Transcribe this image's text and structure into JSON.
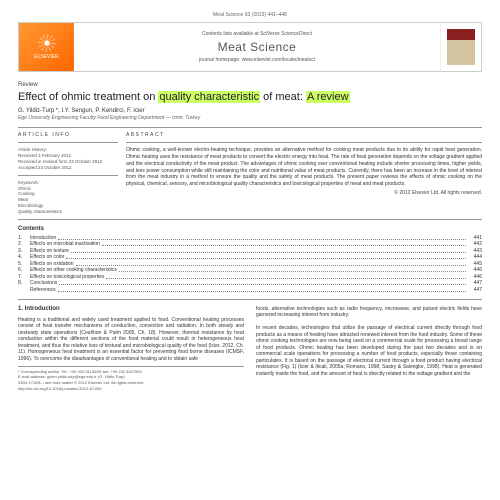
{
  "top_meta": "Meat Science 93 (2013) 441–448",
  "header": {
    "publisher": "ELSEVIER",
    "contents_line": "Contents lists available at SciVerse ScienceDirect",
    "journal": "Meat Science",
    "homepage": "journal homepage: www.elsevier.com/locate/meatsci"
  },
  "review_label": "Review",
  "title_pre": "Effect of ohmic treatment on ",
  "title_hl1": "quality characteristic",
  "title_mid": " of meat: ",
  "title_hl2": "A review",
  "authors": "G. Yildiz-Turp *, I.Y. Sengun, P. Kendirci, F. Icier",
  "affiliation": "Ege University Engineering Faculty Food Engineering Department — Izmir, Turkey",
  "article_info": {
    "head": "ARTICLE INFO",
    "history_label": "Article History:",
    "history": "Received 3 February 2012\nReceived in revised form 23 October 2012\nAccepted 24 October 2012",
    "keywords_label": "Keywords:",
    "keywords": "Ohmic\nCooking\nMeat\nMicrobiology\nQuality characteristics"
  },
  "abstract": {
    "head": "ABSTRACT",
    "body": "Ohmic cooking, a well-known electro-heating technique, provides an alternative method for cooking meat products due to its ability for rapid heat generation. Ohmic heating uses the resistance of meat products to convert the electric energy into heat. The rate of heat generation depends on the voltage gradient applied and the electrical conductivity of the meat product. The advantages of ohmic cooking over conventional heating include shorter processing times, higher yields, and less power consumption while still maintaining the color and nutritional value of meat products. Currently, there has been an increase in the level of interest from the meat industry in a method to ensure the quality and the safety of meat products. The present paper reviews the effects of ohmic cooking on the physical, chemical, sensory, and microbiological quality characteristics and toxicological properties of meat and meat products.",
    "copyright": "© 2012 Elsevier Ltd. All rights reserved."
  },
  "toc": {
    "head": "Contents",
    "items": [
      {
        "n": "1.",
        "t": "Introduction",
        "p": "441"
      },
      {
        "n": "2.",
        "t": "Effects on microbial inactivation",
        "p": "442"
      },
      {
        "n": "3.",
        "t": "Effects on texture",
        "p": "443"
      },
      {
        "n": "4.",
        "t": "Effects on color",
        "p": "444"
      },
      {
        "n": "5.",
        "t": "Effects on oxidation",
        "p": "445"
      },
      {
        "n": "6.",
        "t": "Effects on other cooking characteristics",
        "p": "446"
      },
      {
        "n": "7.",
        "t": "Effects on toxicological properties",
        "p": "446"
      },
      {
        "n": "8.",
        "t": "Conclusions",
        "p": "447"
      },
      {
        "n": "",
        "t": "References",
        "p": "447"
      }
    ]
  },
  "section1": {
    "head": "1. Introduction",
    "col1": "Heating is a traditional and widely used treatment applied to food. Conventional heating processes consist of heat transfer mechanisms of conduction, convection and radiation. In both steady and unsteady state operations (Coulthon & Palm 2005, Ch. 18). However, thermal resistance by heat conduction within the different sections of the food material could result in heterogeneous heat treatment, and thus the relative loss of textural and microbiological quality of the food (Icier, 2012, Ch. 11). Homogeneous heat treatment is an essential factor for preventing food borne diseases (ICMSF, 1996). To overcome the disadvantages of conventional heating and to obtain safe",
    "col2": "foods, alternative technologies such as radio frequency, microwave, and pulsed electric fields have garnered increasing interest from industry.\n\nIn recent decades, technologies that utilize the passage of electrical current directly through food products as a means of heating have attracted renewed interest from the food industry. Some of these ohmic cooking technologies are now being used on a commercial scale for processing a broad range of food products. Ohmic heating has been developed during the past two decades and is on commercial scale operations for processing a number of food products, especially those containing particulates. It is based on the passage of electrical current through a food product having electrical resistance (Fig. 1) (Icier & Ilicali, 2005a; Romano, 1998; Sastry & Salengke, 1998). Heat is generated instantly inside the food, and the amount of heat is directly related to the voltage gradient and the"
  },
  "footnote": {
    "corr": "* Corresponding author. Tel.: +90 232 3113028; fax: +90 232 3427592.",
    "email": "E-mail address: gulen.yildiz.turp@ege.edu.tr (G. Yildiz-Turp).",
    "issn": "0309-1740/$ – see front matter © 2012 Elsevier Ltd. All rights reserved.",
    "doi": "http://dx.doi.org/10.1016/j.meatsci.2012.10.003"
  }
}
